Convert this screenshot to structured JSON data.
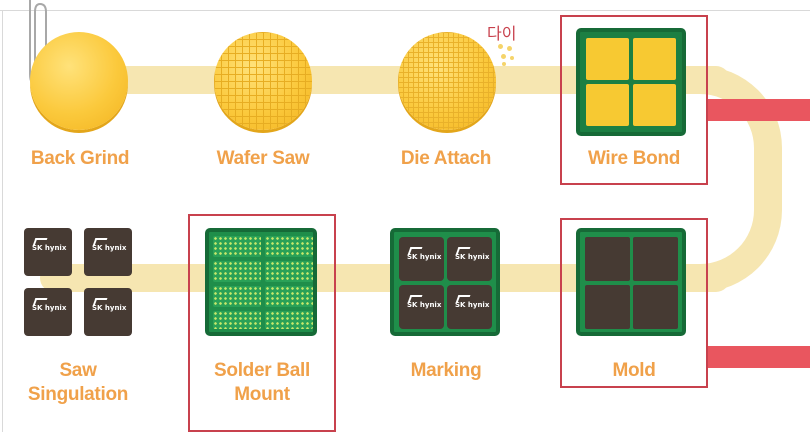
{
  "steps": {
    "back_grind": "Back Grind",
    "wafer_saw": "Wafer Saw",
    "die_attach": "Die Attach",
    "wire_bond": "Wire Bond",
    "saw_singulation_line1": "Saw",
    "saw_singulation_line2": "Singulation",
    "solder_ball_mount_line1": "Solder Ball",
    "solder_ball_mount_line2": "Mount",
    "marking": "Marking",
    "mold": "Mold"
  },
  "annotation": "다이",
  "chip_brand": "SK hynix",
  "colors": {
    "label_orange": "#f0a14a",
    "flow_cream": "#f6e6b1",
    "wafer_gold": "#fbc93c",
    "substrate_green": "#1f8e4a",
    "chip_dark": "#463a33",
    "highlight_red": "#c8414d",
    "bar_red": "#e9565f"
  },
  "highlighted_steps": [
    "Wire Bond",
    "Solder Ball Mount",
    "Mold"
  ]
}
